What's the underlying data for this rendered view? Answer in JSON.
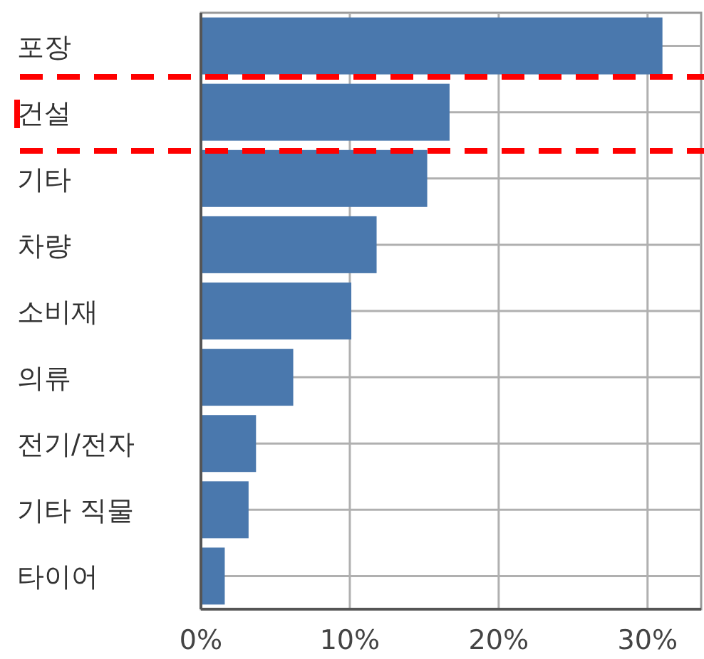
{
  "chart_data": {
    "type": "bar",
    "orientation": "horizontal",
    "categories": [
      "포장",
      "건설",
      "기타",
      "차량",
      "소비재",
      "의류",
      "전기/전자",
      "기타 직물",
      "타이어"
    ],
    "values": [
      31.0,
      16.7,
      15.2,
      11.8,
      10.1,
      6.2,
      3.7,
      3.2,
      1.6
    ],
    "color": "#4a78ad",
    "xlim": [
      0,
      33.6
    ],
    "xticks": [
      {
        "value": 0,
        "label": "0%"
      },
      {
        "value": 10,
        "label": "10%"
      },
      {
        "value": 20,
        "label": "20%"
      },
      {
        "value": 30,
        "label": "30%"
      }
    ],
    "grid": true
  }
}
